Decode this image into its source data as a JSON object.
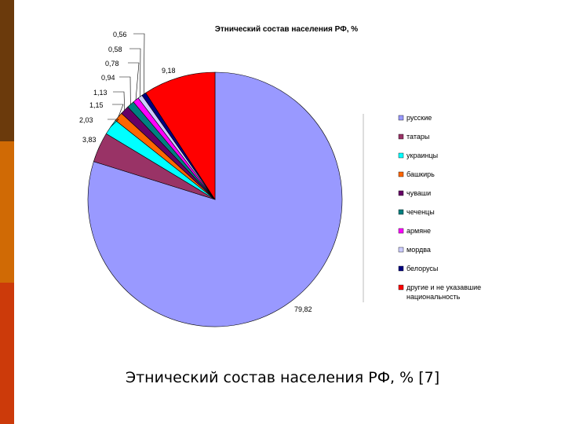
{
  "chart_data": {
    "type": "pie",
    "title": "Этнический состав населения РФ, %",
    "slices": [
      {
        "label": "русские",
        "value": 79.82,
        "value_label": "79,82",
        "color": "#9999ff"
      },
      {
        "label": "татары",
        "value": 3.83,
        "value_label": "3,83",
        "color": "#993366"
      },
      {
        "label": "украинцы",
        "value": 2.03,
        "value_label": "2,03",
        "color": "#00ffff"
      },
      {
        "label": "башкирь",
        "value": 1.15,
        "value_label": "1,15",
        "color": "#ff6600"
      },
      {
        "label": "чуваши",
        "value": 1.13,
        "value_label": "1,13",
        "color": "#660066"
      },
      {
        "label": "чеченцы",
        "value": 0.94,
        "value_label": "0,94",
        "color": "#008080"
      },
      {
        "label": "армяне",
        "value": 0.78,
        "value_label": "0,78",
        "color": "#ff00ff"
      },
      {
        "label": "мордва",
        "value": 0.58,
        "value_label": "0,58",
        "color": "#ccccff"
      },
      {
        "label": "белорусы",
        "value": 0.56,
        "value_label": "0,56",
        "color": "#000080"
      },
      {
        "label": "другие и не указавшие национальность",
        "value": 9.18,
        "value_label": "9,18",
        "color": "#ff0000"
      }
    ],
    "legend_position": "right"
  },
  "caption": "Этнический состав населения РФ, % [7]"
}
